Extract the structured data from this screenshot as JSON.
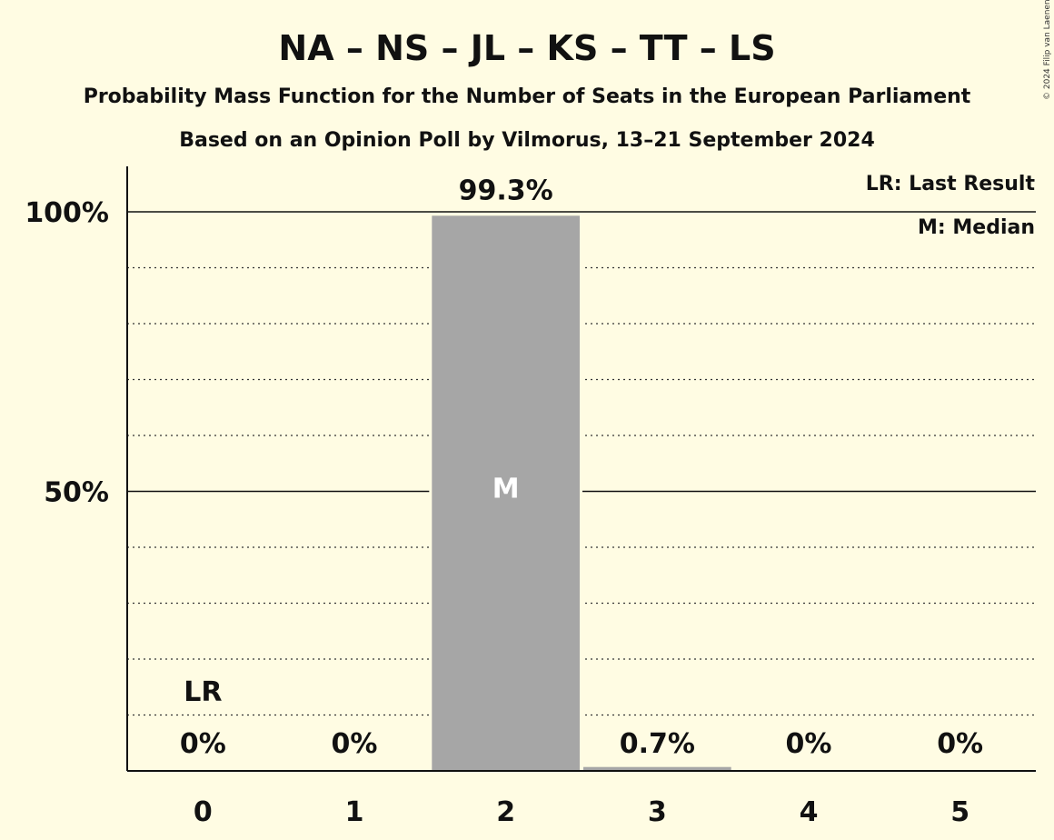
{
  "chart_data": {
    "type": "bar",
    "title": "NA – NS – JL – KS – TT – LS",
    "subtitle": "Probability Mass Function for the Number of Seats in the European Parliament",
    "subtitle2": "Based on an Opinion Poll by Vilmorus, 13–21 September 2024",
    "copyright": "© 2024 Filip van Laenen",
    "categories": [
      "0",
      "1",
      "2",
      "3",
      "4",
      "5"
    ],
    "values": [
      0,
      0,
      99.3,
      0.7,
      0,
      0
    ],
    "value_labels": [
      "0%",
      "0%",
      "99.3%",
      "0.7%",
      "0%",
      "0%"
    ],
    "ylim": [
      0,
      108
    ],
    "yticks": [
      {
        "value": 50,
        "label": "50%"
      },
      {
        "value": 100,
        "label": "100%"
      }
    ],
    "minor_grid_step": 10,
    "last_result_index": 0,
    "last_result_label": "LR",
    "median_index": 2,
    "median_label": "M",
    "legend": {
      "placement": "top-right",
      "items": [
        "LR: Last Result",
        "M: Median"
      ]
    },
    "bar_color": "#a6a6a6",
    "background_color": "#fffce3"
  }
}
